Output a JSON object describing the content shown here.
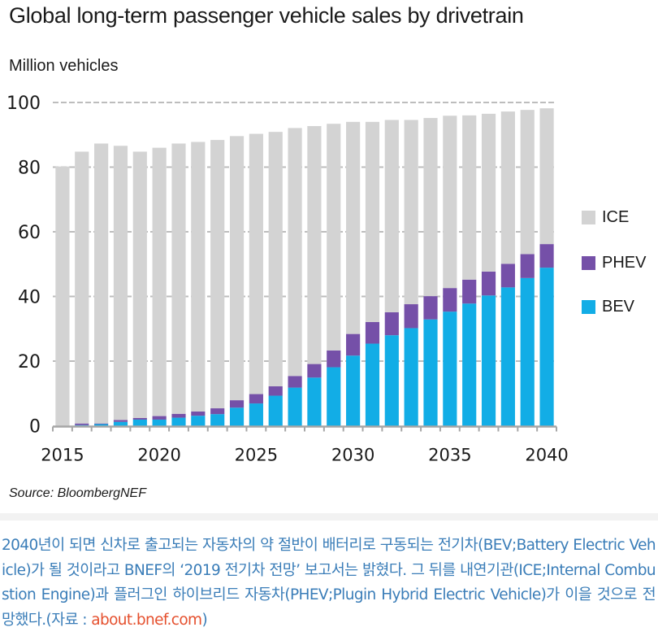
{
  "chart_data": {
    "type": "bar",
    "stacked": true,
    "title": "Global long-term passenger vehicle sales by drivetrain",
    "ylabel": "Million vehicles",
    "xlabel": "",
    "ylim": [
      0,
      100
    ],
    "yticks": [
      0,
      20,
      40,
      60,
      80,
      100
    ],
    "ytick_labels": [
      "0",
      "20",
      "40",
      "60",
      "80",
      "100"
    ],
    "xtick_labels": [
      "2015",
      "2020",
      "2025",
      "2030",
      "2035",
      "2040"
    ],
    "grid": "horizontal dashed",
    "legend_position": "right",
    "categories": [
      "2015",
      "2016",
      "2017",
      "2018",
      "2019",
      "2020",
      "2021",
      "2022",
      "2023",
      "2024",
      "2025",
      "2026",
      "2027",
      "2028",
      "2029",
      "2030",
      "2031",
      "2032",
      "2033",
      "2034",
      "2035",
      "2036",
      "2037",
      "2038",
      "2039",
      "2040"
    ],
    "series": [
      {
        "name": "BEV",
        "color": "#12ade6",
        "values": [
          0.0,
          0.2,
          0.5,
          1.2,
          1.9,
          1.9,
          2.5,
          3.1,
          3.6,
          5.6,
          6.9,
          9.3,
          11.8,
          14.9,
          18.1,
          21.7,
          25.4,
          28.0,
          30.2,
          32.9,
          35.3,
          37.8,
          40.3,
          42.8,
          45.7,
          48.9
        ]
      },
      {
        "name": "PHEV",
        "color": "#7550a8",
        "values": [
          0.0,
          0.5,
          0.2,
          0.6,
          0.5,
          1.1,
          1.2,
          1.3,
          1.8,
          2.3,
          2.9,
          2.9,
          3.6,
          4.2,
          5.2,
          6.7,
          6.7,
          7.1,
          7.4,
          7.2,
          7.3,
          7.4,
          7.4,
          7.3,
          7.4,
          7.3
        ]
      },
      {
        "name": "ICE",
        "color": "#d3d3d3",
        "values": [
          80.2,
          84.1,
          86.6,
          84.8,
          82.4,
          83.0,
          83.6,
          83.4,
          83.0,
          81.7,
          80.5,
          78.7,
          76.7,
          73.6,
          70.1,
          65.6,
          61.9,
          59.5,
          57.0,
          55.1,
          53.3,
          50.8,
          48.8,
          47.1,
          44.6,
          42.0
        ]
      }
    ],
    "totals": [
      80.2,
      84.8,
      87.3,
      86.6,
      84.8,
      86.0,
      87.3,
      87.8,
      88.4,
      89.6,
      90.3,
      90.9,
      92.1,
      92.7,
      93.4,
      94.0,
      94.0,
      94.6,
      94.6,
      95.2,
      95.9,
      96.0,
      96.5,
      97.2,
      97.7,
      98.2
    ],
    "legend": [
      {
        "name": "ICE",
        "color": "#d3d3d3"
      },
      {
        "name": "PHEV",
        "color": "#7550a8"
      },
      {
        "name": "BEV",
        "color": "#12ade6"
      }
    ],
    "source": "Source: BloombergNEF"
  },
  "caption": {
    "text": "2040년이 되면 신차로 출고되는 자동차의 약 절반이 배터리로 구동되는 전기차(BEV;Battery Electric Vehicle)가 될 것이라고 BNEF의 ‘2019 전기차 전망’ 보고서는 밝혔다. 그 뒤를 내연기관(ICE;Internal Combustion Engine)과 플러그인 하이브리드 자동차(PHEV;Plugin Hybrid Electric Vehicle)가 이을 것으로 전망했다.(자료 : ",
    "link_text": "about.bnef.com",
    "closing": ")"
  },
  "colors": {
    "caption_text": "#3a7db8",
    "link": "#e5502e",
    "gridline": "#bdbdbd",
    "axis": "#a6a6a6"
  }
}
